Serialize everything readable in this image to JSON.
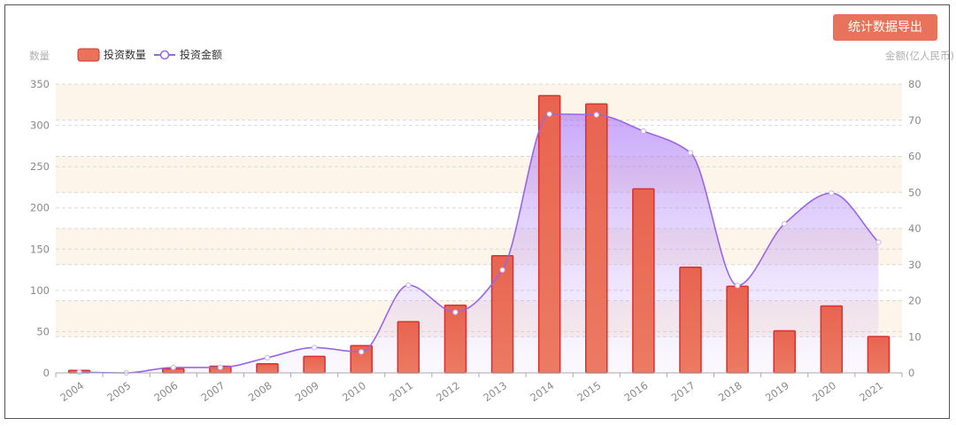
{
  "toolbar": {
    "export_label": "统计数据导出"
  },
  "chart_data": {
    "type": "bar",
    "categories": [
      "2004",
      "2005",
      "2006",
      "2007",
      "2008",
      "2009",
      "2010",
      "2011",
      "2012",
      "2013",
      "2014",
      "2015",
      "2016",
      "2017",
      "2018",
      "2019",
      "2020",
      "2021"
    ],
    "series": [
      {
        "name": "投资数量",
        "type": "bar",
        "axis": "left",
        "values": [
          3,
          0,
          5,
          8,
          11,
          20,
          33,
          62,
          82,
          142,
          336,
          326,
          223,
          128,
          105,
          51,
          81,
          44
        ],
        "color": "#e8735a",
        "border_color": "#d93030"
      },
      {
        "name": "投资金额",
        "type": "line",
        "axis": "right",
        "smooth": true,
        "area": true,
        "values": [
          0.2,
          0,
          1.5,
          1.5,
          4.2,
          7,
          5.8,
          24.3,
          16.8,
          28.5,
          71.7,
          71.5,
          67,
          61,
          24.2,
          41.3,
          49.8,
          36.2
        ],
        "color": "#9966e6"
      }
    ],
    "ylabel_left": "数量",
    "ylabel_right": "金额(亿人民币)",
    "ylim_left": [
      0,
      350
    ],
    "yticks_left": [
      0,
      50,
      100,
      150,
      200,
      250,
      300,
      350
    ],
    "ylim_right": [
      0,
      80
    ],
    "yticks_right": [
      0,
      10,
      20,
      30,
      40,
      50,
      60,
      70,
      80
    ],
    "legend_position": "top-left",
    "grid": true,
    "split_area_colors": [
      "#ffffff",
      "#fdf4ea"
    ]
  }
}
